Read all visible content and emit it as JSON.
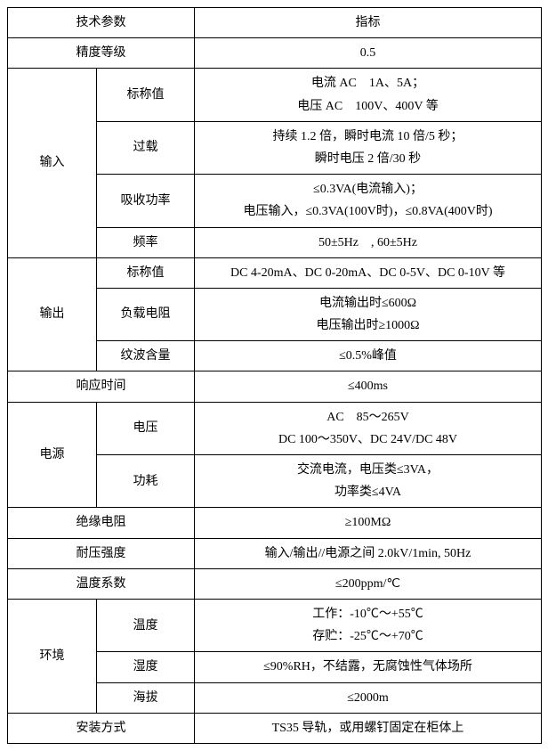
{
  "header": {
    "param": "技术参数",
    "indicator": "指标"
  },
  "precision": {
    "label": "精度等级",
    "value": "0.5"
  },
  "input": {
    "label": "输入",
    "nominal": {
      "label": "标称值",
      "line1": "电流 AC　1A、5A；",
      "line2": "电压 AC　100V、400V 等"
    },
    "overload": {
      "label": "过载",
      "line1": "持续 1.2 倍，瞬时电流 10 倍/5 秒；",
      "line2": "瞬时电压 2 倍/30 秒"
    },
    "power": {
      "label": "吸收功率",
      "line1": "≤0.3VA(电流输入)；",
      "line2": "电压输入，≤0.3VA(100V时)，≤0.8VA(400V时)"
    },
    "freq": {
      "label": "频率",
      "value": "50±5Hz　, 60±5Hz"
    }
  },
  "output": {
    "label": "输出",
    "nominal": {
      "label": "标称值",
      "value": "DC 4-20mA、DC 0-20mA、DC 0-5V、DC 0-10V 等"
    },
    "load": {
      "label": "负载电阻",
      "line1": "电流输出时≤600Ω",
      "line2": "电压输出时≥1000Ω"
    },
    "ripple": {
      "label": "纹波含量",
      "value": "≤0.5%峰值"
    }
  },
  "response": {
    "label": "响应时间",
    "value": "≤400ms"
  },
  "supply": {
    "label": "电源",
    "voltage": {
      "label": "电压",
      "line1": "AC　85～265V",
      "line2": "DC 100～350V、DC 24V/DC 48V"
    },
    "consumption": {
      "label": "功耗",
      "line1": "交流电流，电压类≤3VA，",
      "line2": "功率类≤4VA"
    }
  },
  "insulation": {
    "label": "绝缘电阻",
    "value": "≥100MΩ"
  },
  "withstand": {
    "label": "耐压强度",
    "value": "输入/输出//电源之间  2.0kV/1min, 50Hz"
  },
  "tempcoef": {
    "label": "温度系数",
    "value": "≤200ppm/℃"
  },
  "env": {
    "label": "环境",
    "temp": {
      "label": "温度",
      "line1": "工作：-10℃～+55℃",
      "line2": "存贮：-25℃～+70℃"
    },
    "humidity": {
      "label": "湿度",
      "value": "≤90%RH，不结露，无腐蚀性气体场所"
    },
    "altitude": {
      "label": "海拔",
      "value": "≤2000m"
    }
  },
  "install": {
    "label": "安装方式",
    "value": "TS35 导轨，或用螺钉固定在柜体上"
  }
}
